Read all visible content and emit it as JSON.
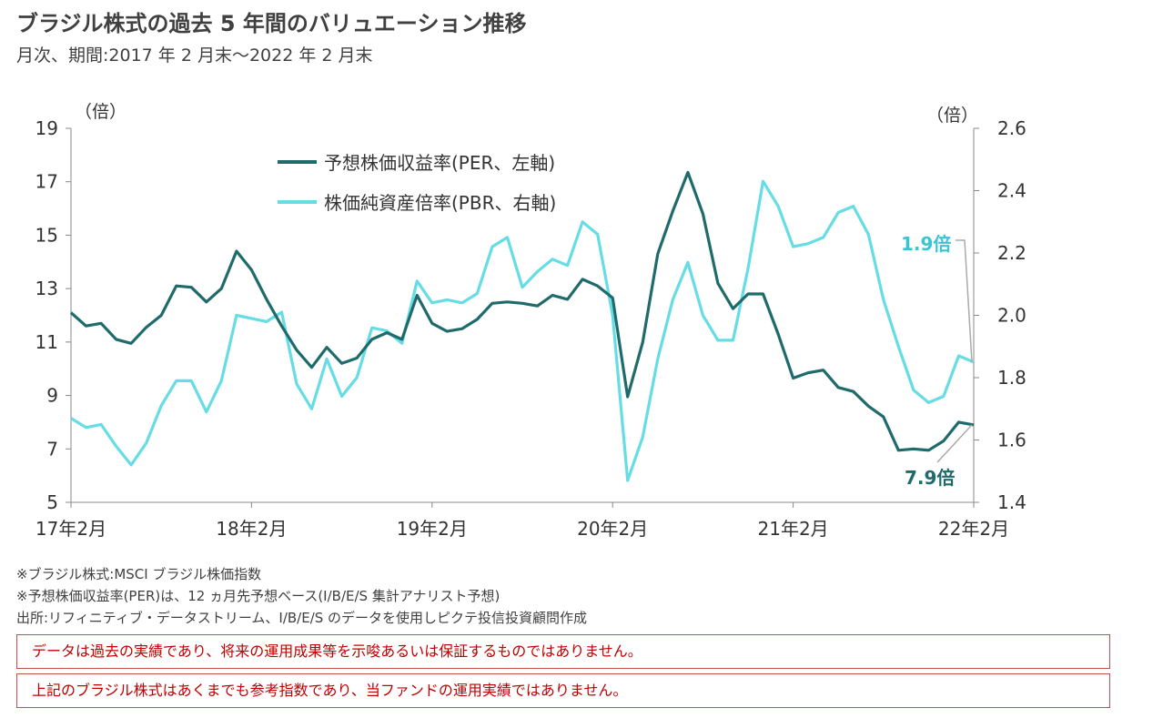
{
  "header": {
    "title": "ブラジル株式の過去 5 年間のバリュエーション推移",
    "subtitle": "月次、期間:2017 年 2 月末～2022 年 2 月末"
  },
  "chart_data": {
    "type": "line",
    "y_left_unit": "（倍）",
    "y_right_unit": "（倍）",
    "y_left": {
      "min": 5,
      "max": 19,
      "ticks": [
        "5",
        "7",
        "9",
        "11",
        "13",
        "15",
        "17",
        "19"
      ]
    },
    "y_right": {
      "min": 1.4,
      "max": 2.6,
      "ticks": [
        "1.4",
        "1.6",
        "1.8",
        "2.0",
        "2.2",
        "2.4",
        "2.6"
      ]
    },
    "x_ticks": [
      "17年2月",
      "18年2月",
      "19年2月",
      "20年2月",
      "21年2月",
      "22年2月"
    ],
    "series": [
      {
        "name": "予想株価収益率(PER、左軸)",
        "axis": "left",
        "color": "#1f6b6b",
        "values": [
          12.1,
          11.6,
          11.7,
          11.1,
          10.95,
          11.55,
          12.0,
          13.1,
          13.05,
          12.5,
          13.0,
          14.4,
          13.7,
          12.6,
          11.6,
          10.7,
          10.05,
          10.8,
          10.2,
          10.4,
          11.1,
          11.35,
          11.1,
          12.75,
          11.7,
          11.4,
          11.5,
          11.85,
          12.45,
          12.5,
          12.45,
          12.35,
          12.75,
          12.6,
          13.35,
          13.1,
          12.65,
          8.95,
          11.0,
          14.3,
          15.9,
          17.35,
          15.8,
          13.2,
          12.25,
          12.8,
          12.8,
          11.3,
          9.65,
          9.85,
          9.95,
          9.3,
          9.15,
          8.6,
          8.2,
          6.95,
          7.0,
          6.95,
          7.3,
          8.0,
          7.9
        ]
      },
      {
        "name": "株価純資産倍率(PBR、右軸)",
        "axis": "right",
        "color": "#66dde4",
        "values": [
          1.67,
          1.64,
          1.65,
          1.58,
          1.52,
          1.59,
          1.71,
          1.79,
          1.79,
          1.69,
          1.79,
          2.0,
          1.99,
          1.98,
          2.01,
          1.78,
          1.7,
          1.86,
          1.74,
          1.8,
          1.96,
          1.95,
          1.91,
          2.11,
          2.04,
          2.05,
          2.04,
          2.07,
          2.22,
          2.25,
          2.09,
          2.14,
          2.18,
          2.16,
          2.3,
          2.26,
          2.0,
          1.47,
          1.61,
          1.86,
          2.05,
          2.17,
          2.0,
          1.92,
          1.92,
          2.15,
          2.43,
          2.35,
          2.22,
          2.23,
          2.25,
          2.33,
          2.35,
          2.26,
          2.05,
          1.9,
          1.76,
          1.72,
          1.74,
          1.87,
          1.85
        ]
      }
    ],
    "annotations": {
      "pbr_last": "1.9倍",
      "per_last": "7.9倍"
    }
  },
  "footer": {
    "note1": "※ブラジル株式:MSCI ブラジル株価指数",
    "note2": "※予想株価収益率(PER)は、12 ヵ月先予想ベース(I/B/E/S 集計アナリスト予想)",
    "note3": "出所:リフィニティブ・データストリーム、I/B/E/S のデータを使用しピクテ投信投資顧問作成",
    "disclaimer1": "データは過去の実績であり、将来の運用成果等を示唆あるいは保証するものではありません。",
    "disclaimer2": "上記のブラジル株式はあくまでも参考指数であり、当ファンドの運用実績ではありません。"
  }
}
